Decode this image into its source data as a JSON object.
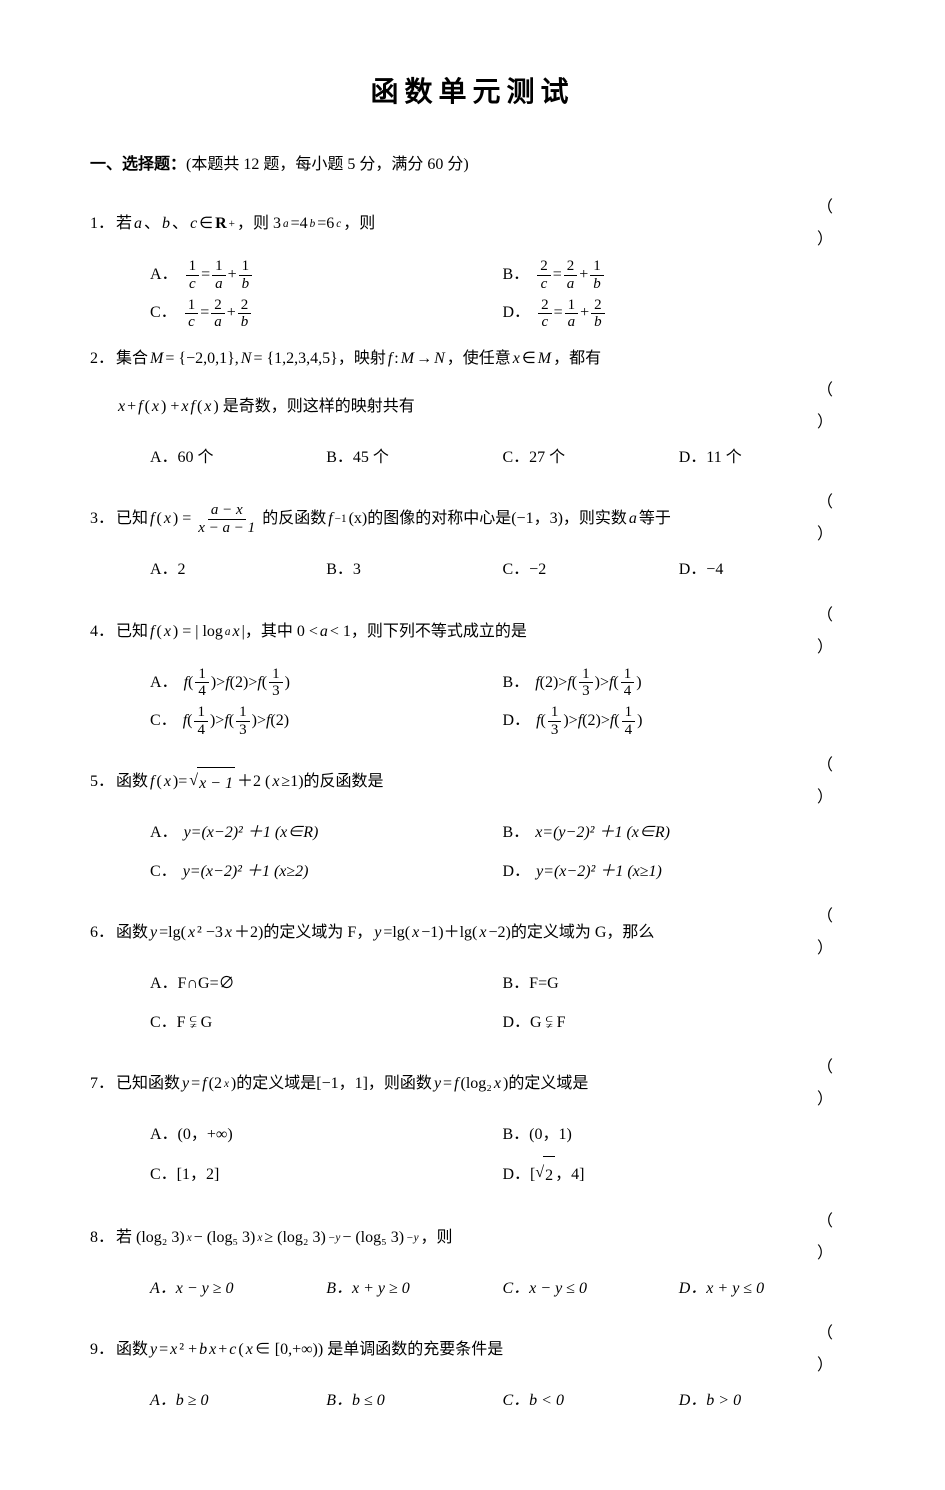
{
  "title": "函数单元测试",
  "section1_head_a": "一、选择题：",
  "section1_head_b": "(本题共 12 题，每小题 5 分，满分 60 分)",
  "bracket": "（ ）",
  "q1": {
    "num": "1．",
    "stem_a": "若 ",
    "stem_b": "、",
    "stem_c": "、",
    "stem_d": "∈",
    "rset": "R",
    "stem_e": "，则 3",
    "stem_f": "=4",
    "stem_g": "=6",
    "stem_h": "，则",
    "A": "A．",
    "B": "B．",
    "C": "C．",
    "D": "D．",
    "eq": "=",
    "plus": "+",
    "n1": "1",
    "n2": "2",
    "a": "a",
    "b": "b",
    "c": "c"
  },
  "q2": {
    "num": "2．",
    "stem_a": "集合 ",
    "stem_b": " = {−2,0,1}, ",
    "stem_c": " = {1,2,3,4,5}，映射 ",
    "stem_d": " : ",
    "stem_e": " → ",
    "stem_f": "，使任意 ",
    "stem_g": " ∈ ",
    "stem_h": "，都有",
    "line2a": " + ",
    "line2b": "(",
    "line2c": ") + ",
    "line2d": "(",
    "line2e": ") 是奇数，则这样的映射共有",
    "A": "A．60 个",
    "B": "B．45 个",
    "C": "C．27 个",
    "D": "D．11 个",
    "M": "M",
    "N": "N",
    "f": "f",
    "x": "x"
  },
  "q3": {
    "num": "3．",
    "stem_a": "已知 ",
    "stem_b": "(",
    "stem_c": ") = ",
    "numtxt": "a − x",
    "dentxt": "x − a − 1",
    "stem_d": " 的反函数 ",
    "stem_e": "(x)的图像的对称中心是(−1，3)，则实数 ",
    "stem_f": " 等于",
    "f": "f",
    "x": "x",
    "a": "a",
    "inv": " −1",
    "A": "A．2",
    "B": "B．3",
    "C": "C．−2",
    "D": "D．−4"
  },
  "q4": {
    "num": "4．",
    "stem_a": "已知 ",
    "stem_b": "(",
    "stem_c": ") = | log",
    "stem_d": " |，其中 0 < ",
    "stem_e": " < 1，则下列不等式成立的是",
    "f": "f",
    "x": "x",
    "a": "a",
    "A": "A．",
    "B": "B．",
    "C": "C．",
    "D": "D．",
    "lp": "(",
    "rp": ")",
    "gt": " > ",
    "two": "2",
    "n1": "1",
    "n3": "3",
    "n4": "4"
  },
  "q5": {
    "num": "5．",
    "stem_a": "函数 ",
    "stem_b": "(",
    "stem_c": ")=",
    "sqrtbody": "x − 1",
    "stem_d": " ＋2 (",
    "stem_e": "≥1)的反函数是",
    "f": "f",
    "x": "x",
    "y": "y",
    "A": "A．",
    "B": "B．",
    "C": "C．",
    "D": "D．",
    "optA": "=(x−2)² ＋1  (x∈R)",
    "optB": "=(y−2)² ＋1  (x∈R)",
    "optC": "=(x−2)² ＋1  (x≥2)",
    "optD": "=(x−2)² ＋1  (x≥1)"
  },
  "q6": {
    "num": "6．",
    "stem_a": "函数 ",
    "stem_b": "=lg(",
    "stem_c": "² −3",
    "stem_d": "＋2)的定义域为 F，",
    "stem_e": "=lg(",
    "stem_f": "−1)＋lg(",
    "stem_g": "−2)的定义域为 G，那么",
    "y": "y",
    "x": "x",
    "A": "A．F∩G=∅",
    "B": "B．F=G",
    "C": "C．F ⫋ G",
    "D": "D．G ⫋ F"
  },
  "q7": {
    "num": "7．",
    "stem_a": "已知函数 ",
    "stem_b": "=",
    "stem_c": "(2",
    "stem_d": ")的定义域是[−1，1]，则函数 ",
    "stem_e": "=",
    "stem_f": "(log₂",
    "stem_g": ")的定义域是",
    "y": "y",
    "f": "f",
    "x": "x",
    "A": "A．(0，+∞)",
    "B": "B．(0，1)",
    "C": "C．[1，2]",
    "D_pre": "D．[",
    "D_post": "，4]",
    "sqrt2": "2"
  },
  "q8": {
    "num": "8．",
    "stem_a": "若 (log₂ 3)",
    "stem_b": " − (log₅ 3)",
    "stem_c": " ≥ (log₂ 3)",
    "stem_d": " − (log₅ 3)",
    "stem_e": "，则",
    "x": "x",
    "negy": "−y",
    "A": "A．x − y ≥ 0",
    "B": "B．x + y ≥ 0",
    "C": "C．x − y ≤ 0",
    "D": "D．x + y ≤ 0"
  },
  "q9": {
    "num": "9．",
    "stem_a": "函数 ",
    "stem_b": " = ",
    "stem_c": "² + ",
    "stem_d": " + ",
    "stem_e": "(",
    "stem_f": " ∈ [0,+∞)) 是单调函数的充要条件是",
    "y": "y",
    "x": "x",
    "b": "b",
    "c": "c",
    "A": "A．b ≥ 0",
    "B": "B．b ≤ 0",
    "C": "C．b < 0",
    "D": "D．b > 0"
  }
}
